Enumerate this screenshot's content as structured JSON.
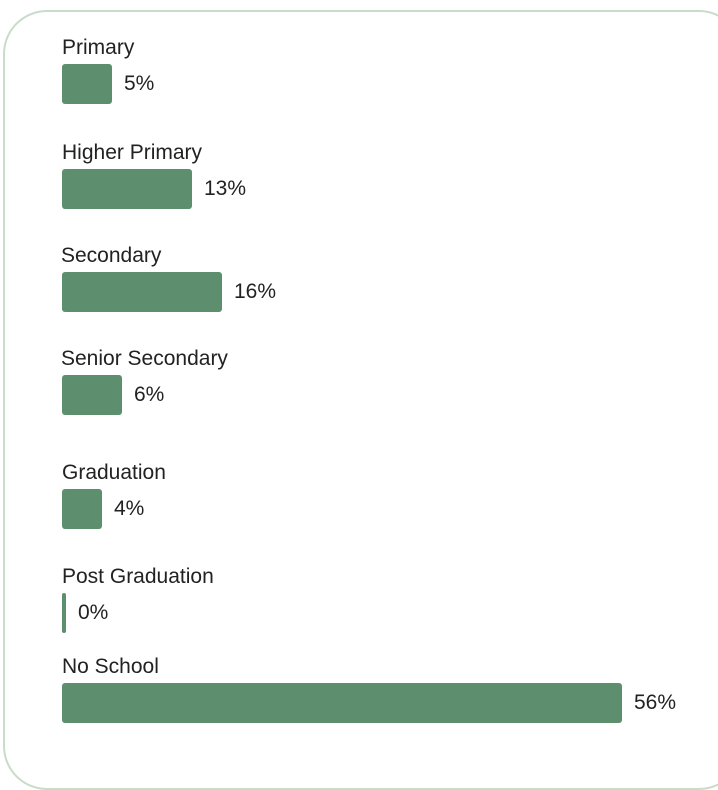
{
  "colors": {
    "bar": "#5d8f6e",
    "card_border": "#c8dcc8",
    "text": "#222222"
  },
  "chart_data": {
    "type": "bar",
    "orientation": "horizontal",
    "title": "",
    "xlabel": "",
    "ylabel": "",
    "unit": "%",
    "grid": false,
    "legend": "none",
    "xlim": [
      0,
      56
    ],
    "categories": [
      "Primary",
      "Higher Primary",
      "Secondary",
      "Senior Secondary",
      "Graduation",
      "Post Graduation",
      "No School"
    ],
    "values": [
      5,
      13,
      16,
      6,
      4,
      0,
      56
    ],
    "value_labels": [
      "5%",
      "13%",
      "16%",
      "6%",
      "4%",
      "0%",
      "56%"
    ]
  }
}
